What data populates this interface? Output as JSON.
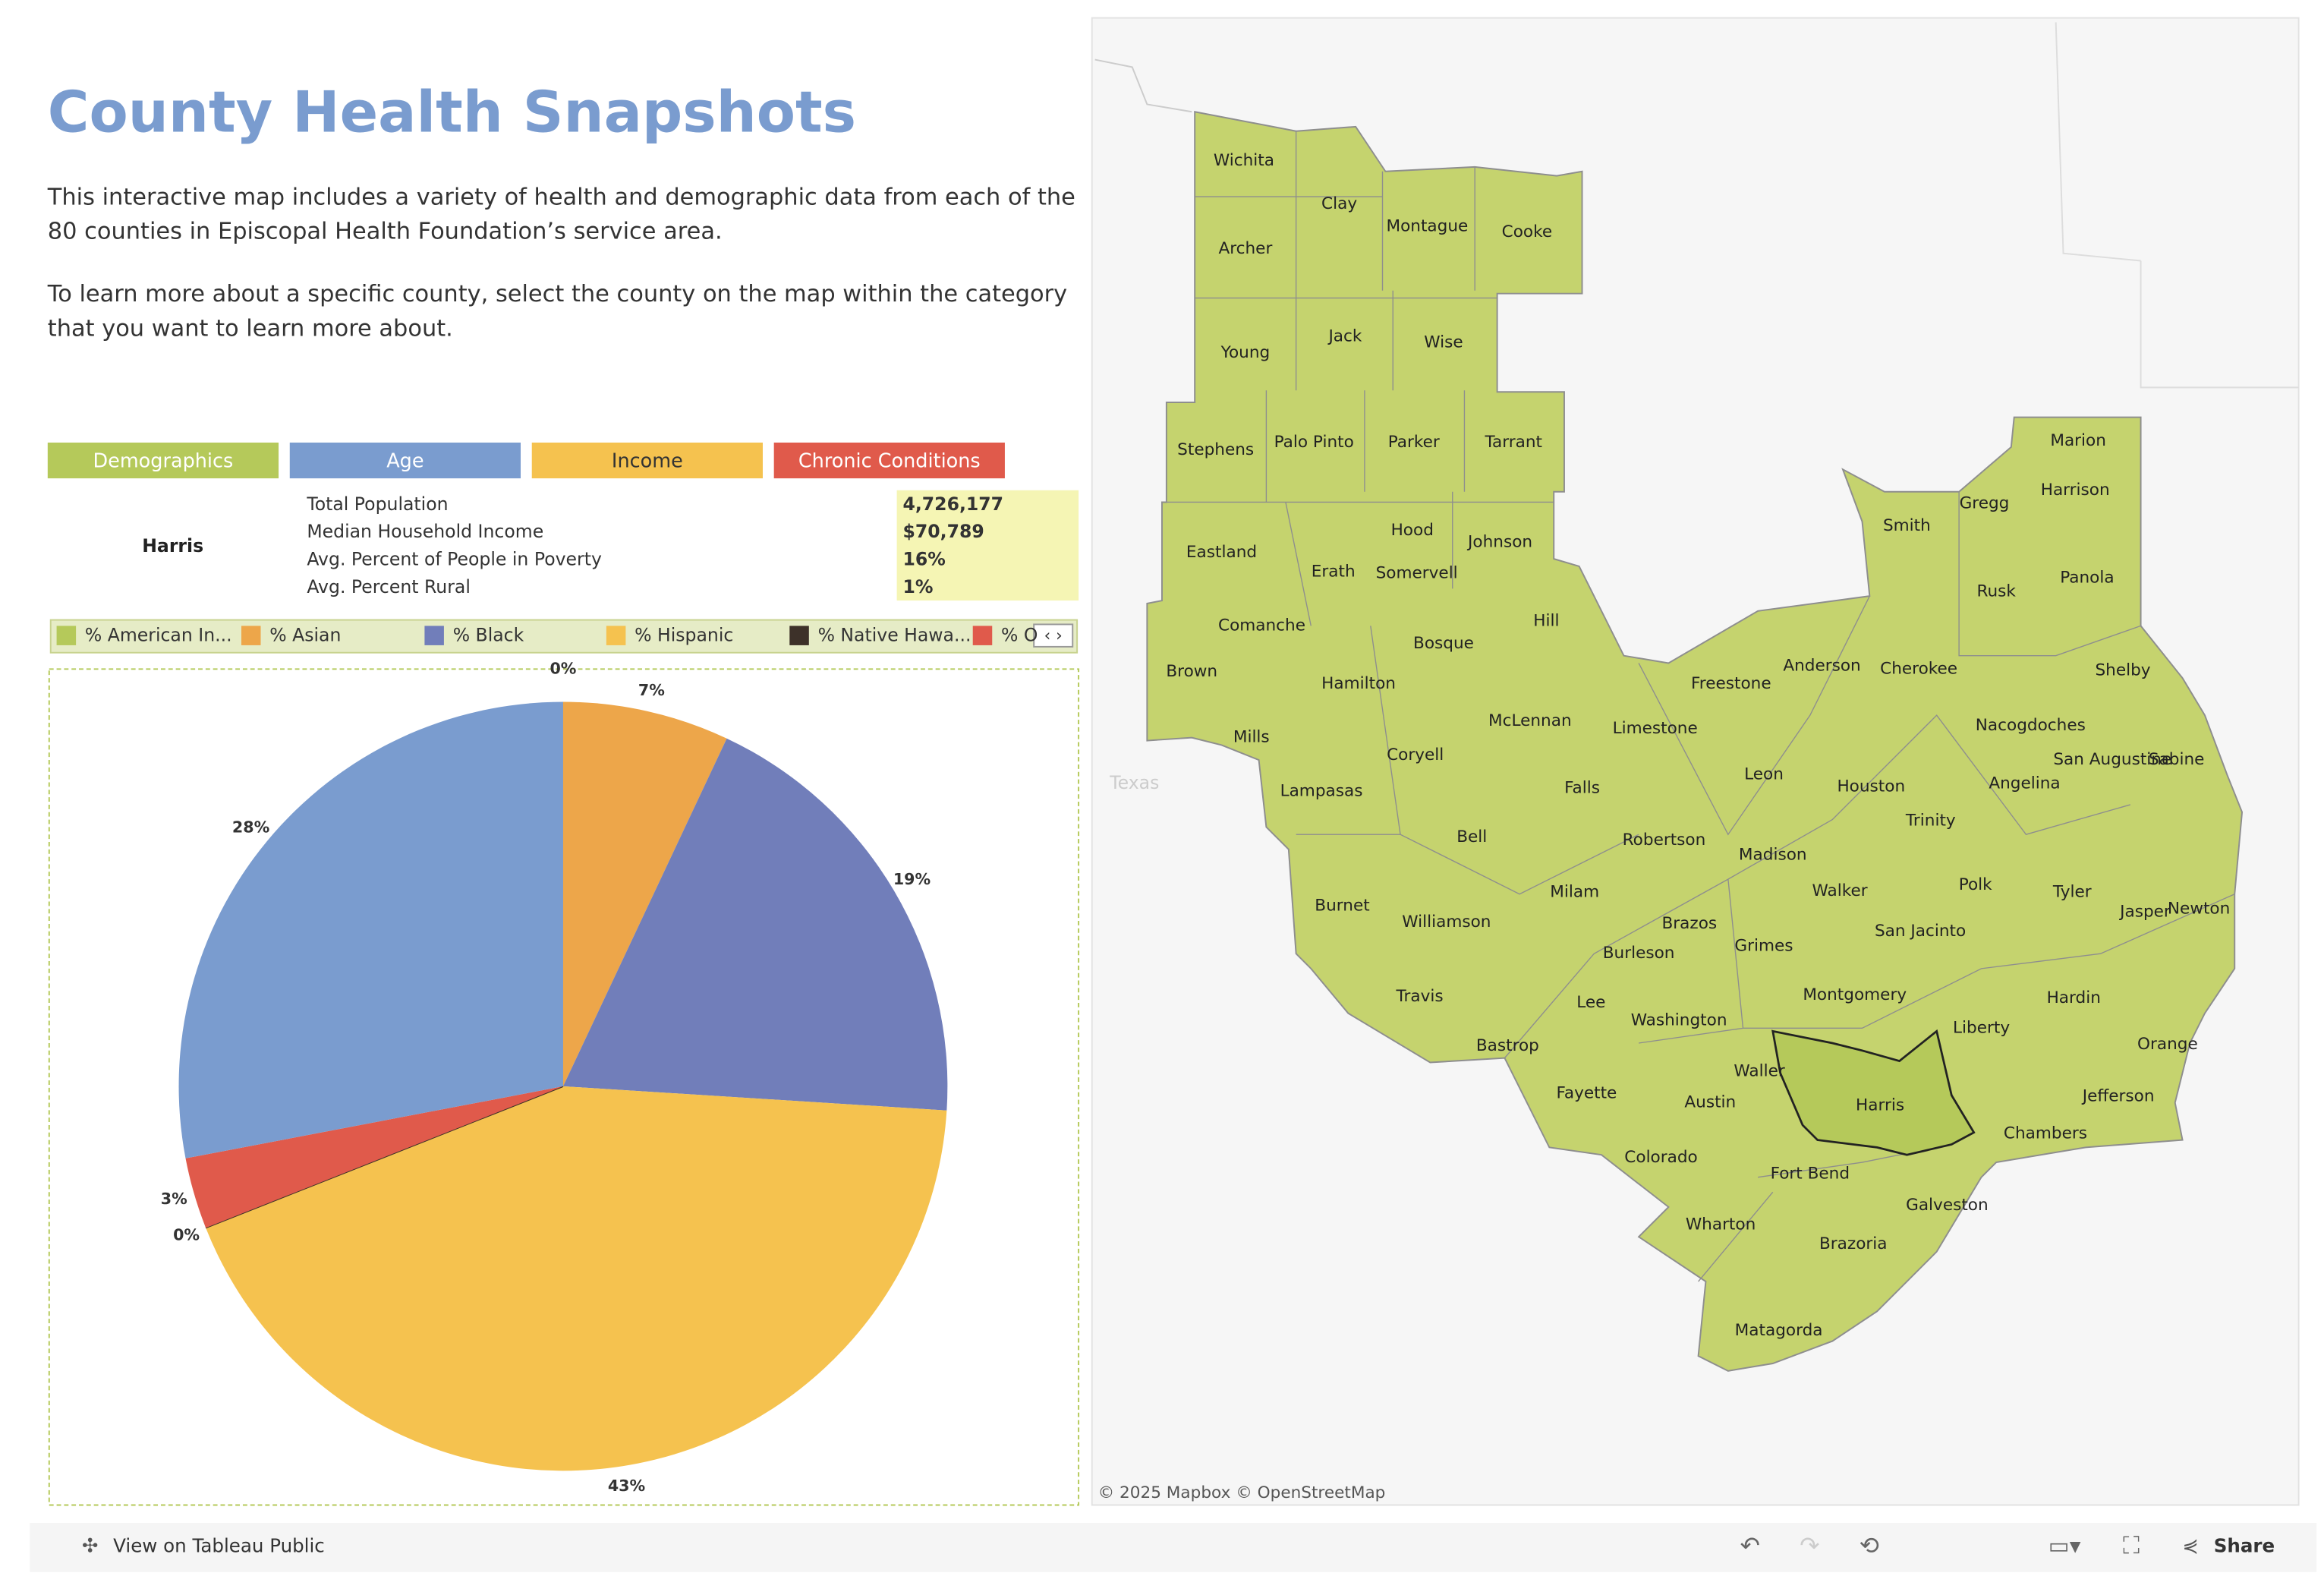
{
  "header": {
    "title": "County Health Snapshots",
    "description": [
      "This interactive map includes a variety of health and demographic data from each of the",
      "80 counties in Episcopal Health Foundation’s service area.",
      "To learn more about a specific county, select the county on the map within the category",
      "that you want to learn more about."
    ]
  },
  "tabs": [
    "Demographics",
    "Age",
    "Income",
    "Chronic Conditions"
  ],
  "summary": {
    "county": "Harris",
    "rows": [
      {
        "label": "Total Population",
        "value": "4,726,177"
      },
      {
        "label": "Median Household Income",
        "value": "$70,789"
      },
      {
        "label": "Avg. Percent of People in Poverty",
        "value": "16%"
      },
      {
        "label": "Avg. Percent Rural",
        "value": "1%"
      }
    ]
  },
  "chart_data": {
    "type": "pie",
    "categories": [
      "% American In...",
      "% Asian",
      "% Black",
      "% Hispanic",
      "% Native Hawa...",
      "% O",
      null
    ],
    "values": [
      0,
      7,
      19,
      43,
      0,
      3,
      28
    ],
    "value_labels": [
      "0%",
      "7%",
      "19%",
      "43%",
      "0%",
      "3%",
      "28%"
    ],
    "colors": [
      "#b5c95a",
      "#eda64a",
      "#717eba",
      "#f5c24f",
      "#3d3129",
      "#e05a4b",
      "#7a9ccf"
    ]
  },
  "map": {
    "region_label": "Texas",
    "attribution": "© 2025 Mapbox © OpenStreetMap",
    "selected": "Harris",
    "counties": [
      "Wichita",
      "Clay",
      "Montague",
      "Cooke",
      "Archer",
      "Jack",
      "Wise",
      "Young",
      "Stephens",
      "Palo Pinto",
      "Parker",
      "Tarrant",
      "Marion",
      "Harrison",
      "Gregg",
      "Smith",
      "Eastland",
      "Hood",
      "Johnson",
      "Somervell",
      "Erath",
      "Rusk",
      "Panola",
      "Comanche",
      "Hill",
      "Bosque",
      "Anderson",
      "Cherokee",
      "Shelby",
      "Brown",
      "Freestone",
      "Hamilton",
      "McLennan",
      "Limestone",
      "Nacogdoches",
      "Mills",
      "Coryell",
      "Sabine",
      "San Augustine",
      "Leon",
      "Houston",
      "Angelina",
      "Lampasas",
      "Falls",
      "Trinity",
      "Bell",
      "Robertson",
      "Madison",
      "Polk",
      "Walker",
      "Tyler",
      "Burnet",
      "Milam",
      "Jasper",
      "Newton",
      "Williamson",
      "Brazos",
      "San Jacinto",
      "Grimes",
      "Burleson",
      "Montgomery",
      "Travis",
      "Hardin",
      "Lee",
      "Washington",
      "Liberty",
      "Bastrop",
      "Orange",
      "Waller",
      "Fayette",
      "Harris",
      "Austin",
      "Jefferson",
      "Chambers",
      "Colorado",
      "Fort Bend",
      "Galveston",
      "Wharton",
      "Brazoria",
      "Matagorda"
    ]
  },
  "toolbar": {
    "view": "View on Tableau Public",
    "share": "Share"
  }
}
